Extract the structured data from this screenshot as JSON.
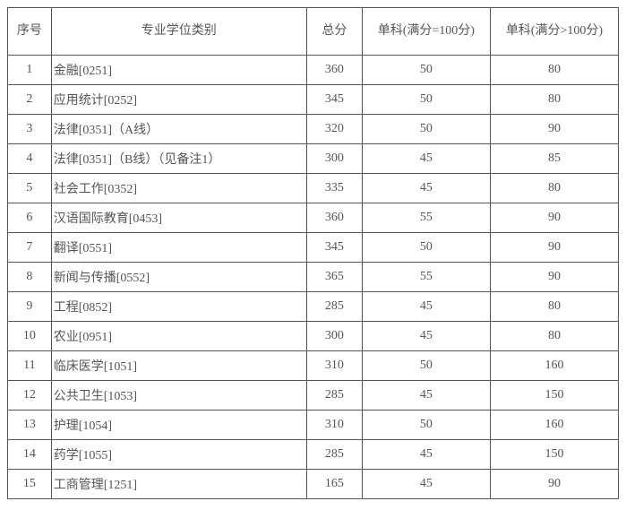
{
  "table": {
    "columns": [
      {
        "key": "idx",
        "label": "序号"
      },
      {
        "key": "name",
        "label": "专业学位类别"
      },
      {
        "key": "total",
        "label": "总分"
      },
      {
        "key": "s1",
        "label": "单科(满分=100分)"
      },
      {
        "key": "s2",
        "label": "单科(满分>100分)"
      }
    ],
    "rows": [
      {
        "idx": "1",
        "name": "金融[0251]",
        "total": "360",
        "s1": "50",
        "s2": "80"
      },
      {
        "idx": "2",
        "name": "应用统计[0252]",
        "total": "345",
        "s1": "50",
        "s2": "80"
      },
      {
        "idx": "3",
        "name": "法律[0351]（A线）",
        "total": "320",
        "s1": "50",
        "s2": "90"
      },
      {
        "idx": "4",
        "name": "法律[0351]（B线）（见备注1）",
        "total": "300",
        "s1": "45",
        "s2": "85"
      },
      {
        "idx": "5",
        "name": "社会工作[0352]",
        "total": "335",
        "s1": "45",
        "s2": "80"
      },
      {
        "idx": "6",
        "name": "汉语国际教育[0453]",
        "total": "360",
        "s1": "55",
        "s2": "90"
      },
      {
        "idx": "7",
        "name": "翻译[0551]",
        "total": "345",
        "s1": "50",
        "s2": "90"
      },
      {
        "idx": "8",
        "name": "新闻与传播[0552]",
        "total": "365",
        "s1": "55",
        "s2": "90"
      },
      {
        "idx": "9",
        "name": "工程[0852]",
        "total": "285",
        "s1": "45",
        "s2": "80"
      },
      {
        "idx": "10",
        "name": "农业[0951]",
        "total": "300",
        "s1": "45",
        "s2": "80"
      },
      {
        "idx": "11",
        "name": "临床医学[1051]",
        "total": "310",
        "s1": "50",
        "s2": "160"
      },
      {
        "idx": "12",
        "name": "公共卫生[1053]",
        "total": "285",
        "s1": "45",
        "s2": "150"
      },
      {
        "idx": "13",
        "name": "护理[1054]",
        "total": "310",
        "s1": "50",
        "s2": "160"
      },
      {
        "idx": "14",
        "name": "药学[1055]",
        "total": "285",
        "s1": "45",
        "s2": "150"
      },
      {
        "idx": "15",
        "name": "工商管理[1251]",
        "total": "165",
        "s1": "45",
        "s2": "90"
      }
    ]
  }
}
